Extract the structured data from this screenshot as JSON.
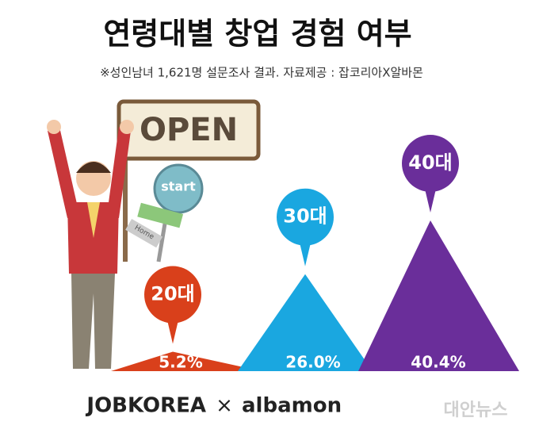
{
  "chart_data": {
    "type": "triangle",
    "title": "연령대별 창업 경험 여부",
    "subtitle": "※성인남녀 1,621명 설문조사 결과. 자료제공 : 잡코리아X알바몬",
    "categories": [
      "20대",
      "30대",
      "40대"
    ],
    "values": [
      5.2,
      26.0,
      40.4
    ],
    "value_labels": [
      "5.2%",
      "26.0%",
      "40.4%"
    ],
    "colors": [
      "#d9401b",
      "#1aa7e0",
      "#6a2e9a"
    ],
    "signs": [
      "OPEN",
      "start",
      "Home"
    ],
    "footer": {
      "left": "JOBKOREA",
      "sep": "×",
      "right": "albamon"
    },
    "watermark": "대안뉴스"
  }
}
